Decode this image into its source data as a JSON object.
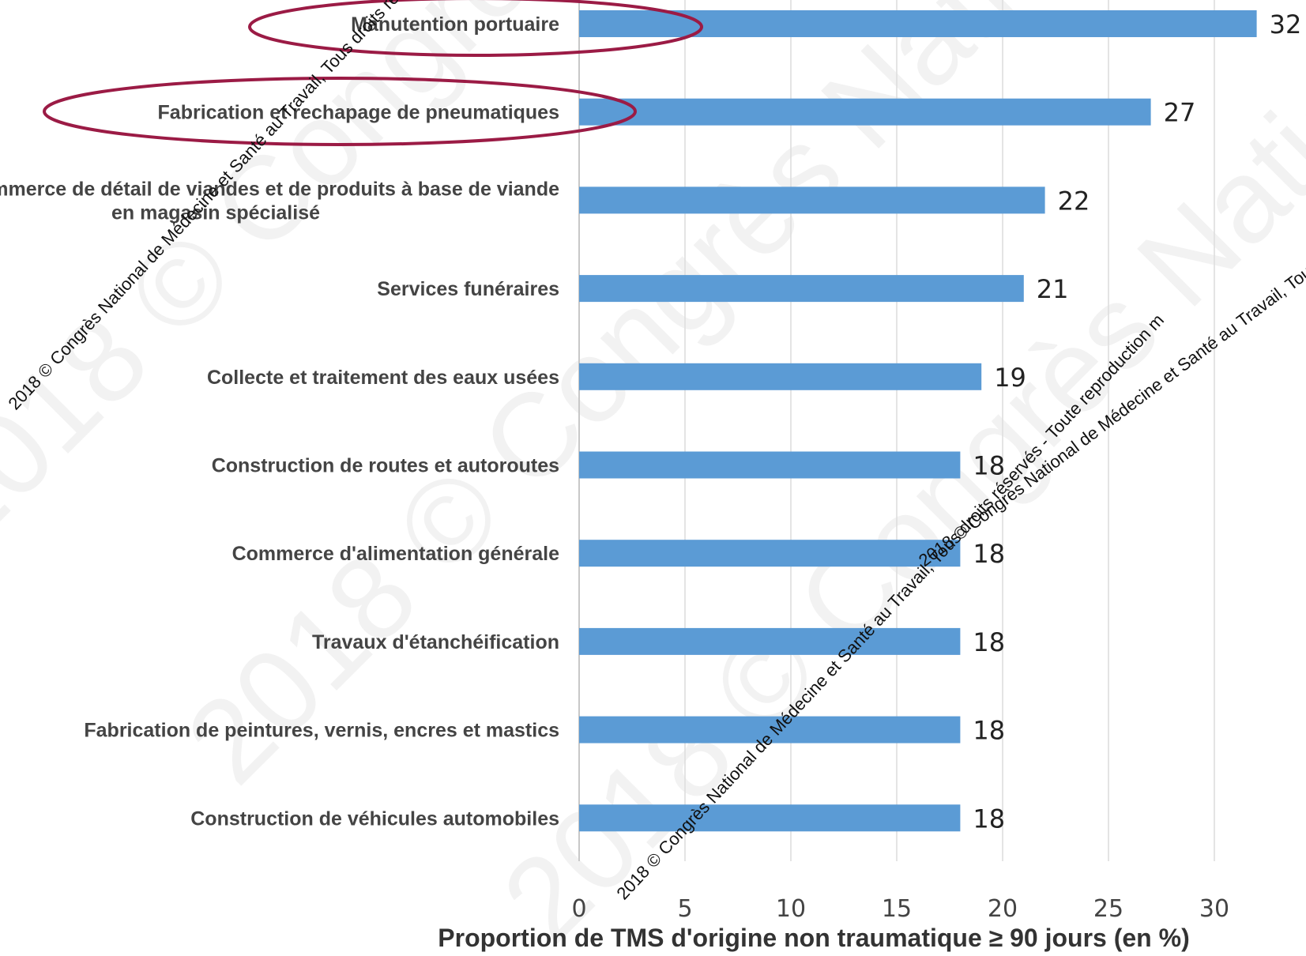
{
  "chart_data": {
    "type": "bar",
    "orientation": "horizontal",
    "categories": [
      "Manutention portuaire",
      "Fabrication et rechapage de pneumatiques",
      "Commerce de détail de viandes et de produits à base de viande en magasin spécialisé",
      "Services funéraires",
      "Collecte et traitement des eaux usées",
      "Construction de routes et autoroutes",
      "Commerce d'alimentation générale",
      "Travaux d'étanchéification",
      "Fabrication de peintures, vernis, encres et mastics",
      "Construction de véhicules automobiles"
    ],
    "category_label_lines": [
      [
        "Manutention portuaire"
      ],
      [
        "Fabrication et rechapage de pneumatiques"
      ],
      [
        "Commerce de détail de viandes et de produits à base de viande",
        "en magasin spécialisé"
      ],
      [
        "Services funéraires"
      ],
      [
        "Collecte et traitement des eaux usées"
      ],
      [
        "Construction de routes et autoroutes"
      ],
      [
        "Commerce d'alimentation générale"
      ],
      [
        "Travaux d'étanchéification"
      ],
      [
        "Fabrication de peintures, vernis, encres et mastics"
      ],
      [
        "Construction de véhicules automobiles"
      ]
    ],
    "values": [
      32,
      27,
      22,
      21,
      19,
      18,
      18,
      18,
      18,
      18
    ],
    "xlabel": "Proportion de TMS d'origine non traumatique ≥ 90 jours (en %)",
    "xlim": [
      0,
      35
    ],
    "xticks": [
      0,
      5,
      10,
      15,
      20,
      25,
      30,
      35
    ],
    "highlighted_categories": [
      0,
      1
    ],
    "grid": "vertical",
    "bar_color": "#5b9bd5",
    "highlight_color": "#9b1b45"
  },
  "watermark": {
    "large_text": "2018 © Congrès National de Médecine et Santé au Travail, Tous droits réservés - Toute reproduction",
    "small_text": "2018 © Congrès National de Médecine et Santé au Travail, Tous droits réservés - Toute reproduction m"
  }
}
